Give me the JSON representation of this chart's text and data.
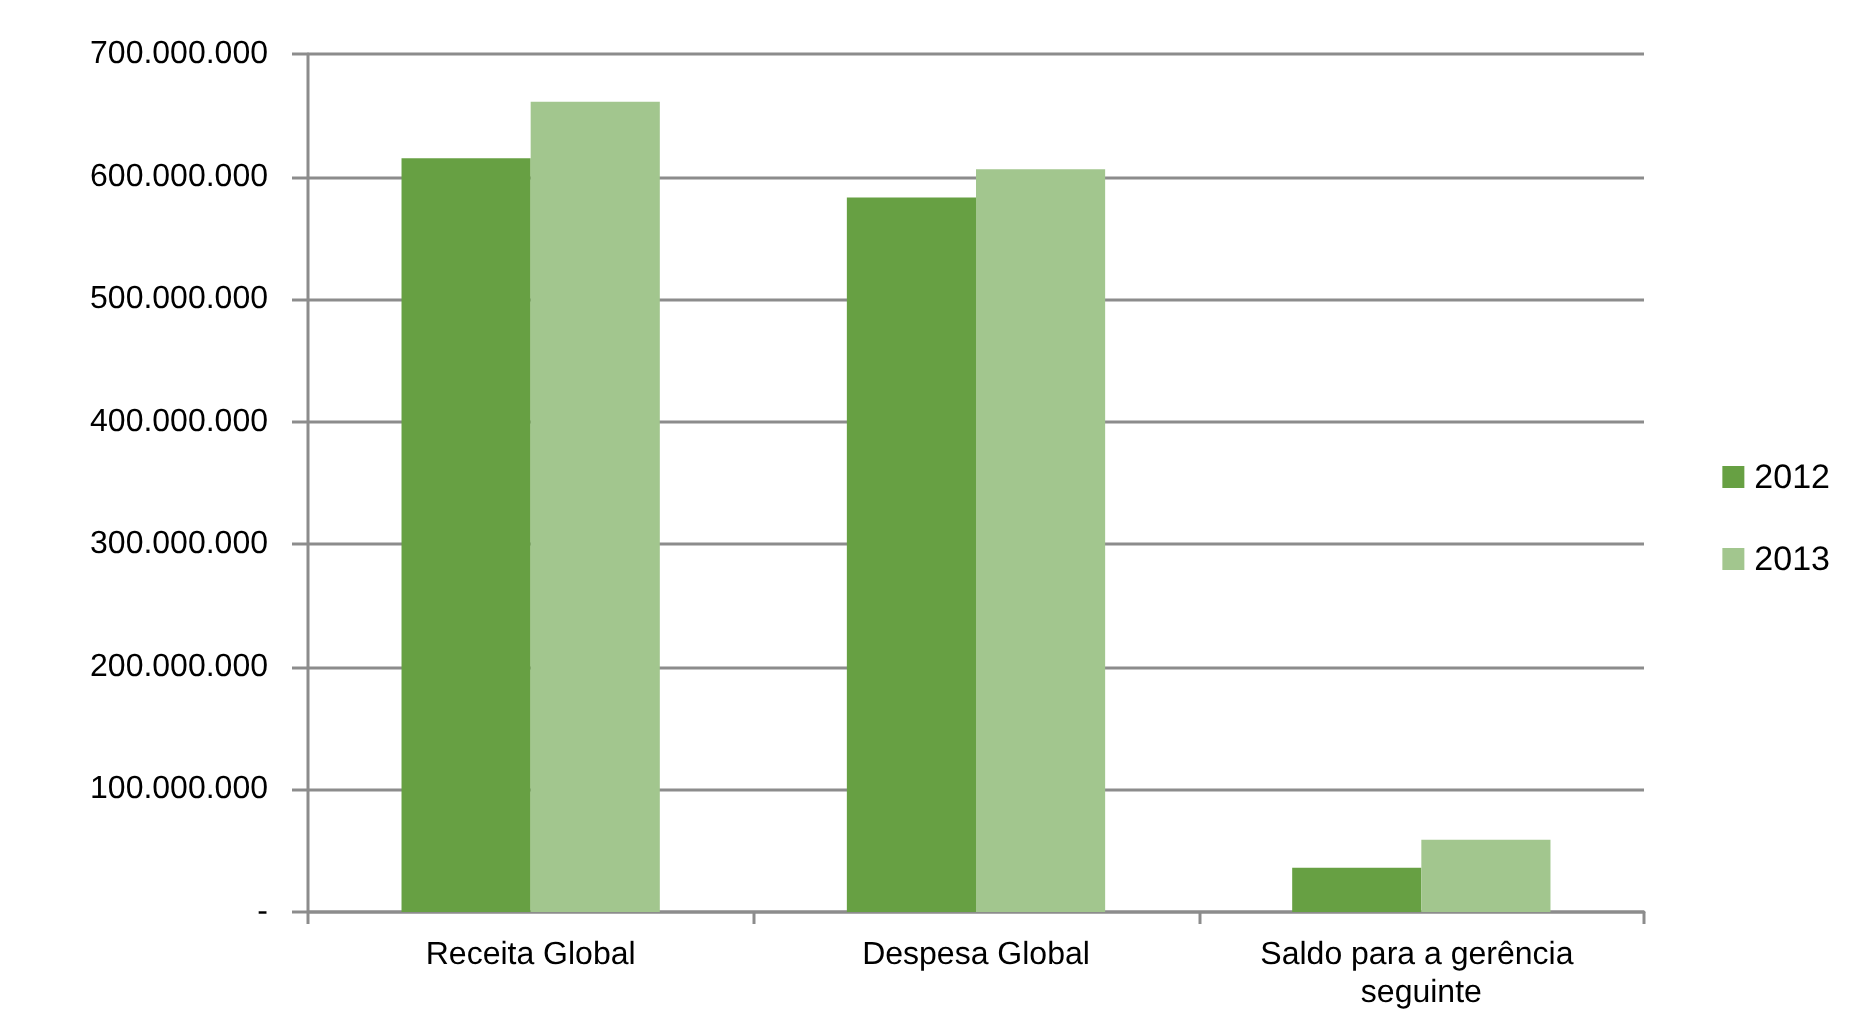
{
  "chart_data": {
    "type": "bar",
    "categories": [
      "Receita Global",
      "Despesa Global",
      "Saldo para a gerência seguinte"
    ],
    "series": [
      {
        "name": "2012",
        "color": "#67a043",
        "values": [
          615000000,
          583000000,
          36000000
        ]
      },
      {
        "name": "2013",
        "color": "#a2c68e",
        "values": [
          661000000,
          606000000,
          59000000
        ]
      }
    ],
    "ylim": [
      0,
      700000000
    ],
    "yticks": [
      {
        "value": 0,
        "label": "-"
      },
      {
        "value": 100000000,
        "label": "100.000.000"
      },
      {
        "value": 200000000,
        "label": "200.000.000"
      },
      {
        "value": 300000000,
        "label": "300.000.000"
      },
      {
        "value": 400000000,
        "label": "400.000.000"
      },
      {
        "value": 500000000,
        "label": "500.000.000"
      },
      {
        "value": 600000000,
        "label": "600.000.000"
      },
      {
        "value": 700000000,
        "label": "700.000.000"
      }
    ],
    "grid": "y",
    "legend": "right"
  }
}
